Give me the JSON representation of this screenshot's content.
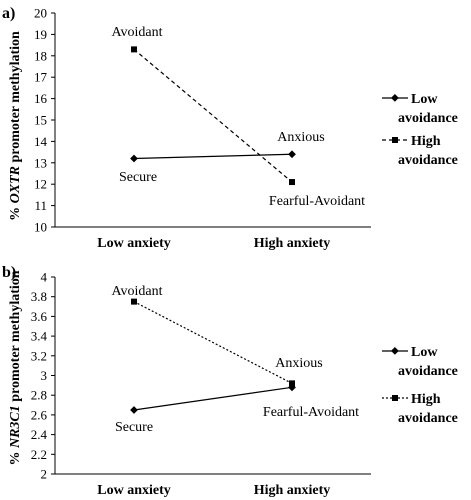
{
  "chart_data": [
    {
      "panel_label": "a)",
      "type": "line",
      "ylabel_italic": "OXTR",
      "ylabel_prefix": "% ",
      "ylabel_suffix": " promoter methylation",
      "categories": [
        "Low anxiety",
        "High anxiety"
      ],
      "ylim": [
        10,
        20
      ],
      "yticks": [
        "10",
        "11",
        "12",
        "13",
        "14",
        "15",
        "16",
        "17",
        "18",
        "19",
        "20"
      ],
      "series": [
        {
          "name_line1": "Low",
          "name_line2": "avoidance",
          "values": [
            13.2,
            13.4
          ],
          "marker": "diamond",
          "dash": "solid"
        },
        {
          "name_line1": "High",
          "name_line2": "avoidance",
          "values": [
            18.3,
            12.1
          ],
          "marker": "square",
          "dash": "dashed"
        }
      ],
      "annotations": {
        "avoidant": "Avoidant",
        "secure": "Secure",
        "anxious": "Anxious",
        "fearful": "Fearful-Avoidant"
      }
    },
    {
      "panel_label": "b)",
      "type": "line",
      "ylabel_italic": "NR3C1",
      "ylabel_prefix": "% ",
      "ylabel_suffix": " promoter methylation",
      "categories": [
        "Low anxiety",
        "High anxiety"
      ],
      "ylim": [
        2,
        4
      ],
      "yticks": [
        "2",
        "2.2",
        "2.4",
        "2.6",
        "2.8",
        "3",
        "3.2",
        "3.4",
        "3.6",
        "3.8",
        "4"
      ],
      "series": [
        {
          "name_line1": "Low",
          "name_line2": "avoidance",
          "values": [
            2.65,
            2.88
          ],
          "marker": "diamond",
          "dash": "solid"
        },
        {
          "name_line1": "High",
          "name_line2": "avoidance",
          "values": [
            3.75,
            2.92
          ],
          "marker": "square",
          "dash": "dotted"
        }
      ],
      "annotations": {
        "avoidant": "Avoidant",
        "secure": "Secure",
        "anxious": "Anxious",
        "fearful": "Fearful-Avoidant"
      }
    }
  ]
}
